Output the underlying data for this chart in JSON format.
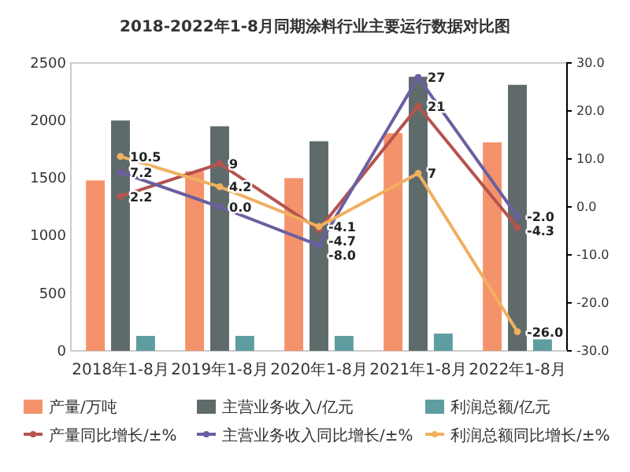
{
  "chart_data": {
    "type": "bar",
    "title": "2018-2022年1-8月同期涂料行业主要运行数据对比图",
    "categories": [
      "2018年1-8月",
      "2019年1-8月",
      "2020年1-8月",
      "2021年1-8月",
      "2022年1-8月"
    ],
    "series": [
      {
        "name": "产量/万吨",
        "color": "#f4936b",
        "values": [
          1480,
          1560,
          1500,
          1890,
          1810
        ]
      },
      {
        "name": "主营业务收入/亿元",
        "color": "#5f6b6b",
        "values": [
          2000,
          1950,
          1820,
          2380,
          2310
        ]
      },
      {
        "name": "利润总额/亿元",
        "color": "#5f9ea0",
        "values": [
          130,
          130,
          130,
          150,
          100
        ]
      },
      {
        "name": "产量同比增长/±%",
        "type": "line",
        "axis": "y2",
        "color": "#b5534e",
        "values": [
          2.2,
          9,
          -4.7,
          21,
          -4.3
        ],
        "value_labels": [
          "2.2",
          "9",
          "-4.7",
          "21",
          "-4.3"
        ]
      },
      {
        "name": "主营业务收入同比增长/±%",
        "type": "line",
        "axis": "y2",
        "color": "#6b5fa0",
        "values": [
          7.2,
          0.0,
          -8.0,
          27,
          -2.0
        ],
        "value_labels": [
          "7.2",
          "0.0",
          "-8.0",
          "27",
          "-2.0"
        ]
      },
      {
        "name": "利润总额同比增长/±%",
        "type": "line",
        "axis": "y2",
        "color": "#f0b060",
        "values": [
          10.5,
          4.2,
          -4.1,
          7,
          -26.0
        ],
        "value_labels": [
          "10.5",
          "4.2",
          "-4.1",
          "7",
          "-26.0"
        ]
      }
    ],
    "ylim": [
      0,
      2500
    ],
    "yticks": [
      0,
      500,
      1000,
      1500,
      2000,
      2500
    ],
    "y2lim": [
      -30,
      30
    ],
    "y2ticks": [
      {
        "value": -30,
        "label": "-30.0"
      },
      {
        "value": -20,
        "label": "-20.0"
      },
      {
        "value": -10,
        "label": "-10.0"
      },
      {
        "value": 0,
        "label": "0.0"
      },
      {
        "value": 10,
        "label": "10.0"
      },
      {
        "value": 20,
        "label": "20.0"
      },
      {
        "value": 30,
        "label": "30.0"
      }
    ],
    "grid": false,
    "legend": "bottom",
    "marker": "circle",
    "line_style": "solid"
  }
}
